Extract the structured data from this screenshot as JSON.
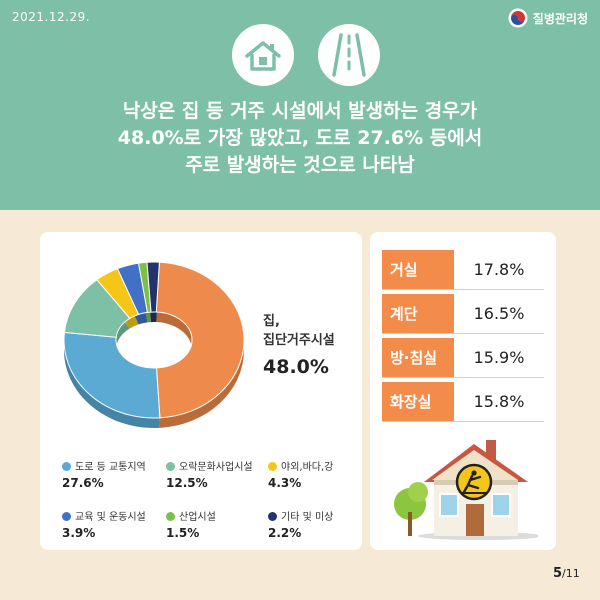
{
  "header": {
    "date": "2021.12.29.",
    "agency": "질병관리청",
    "headline_lines": [
      "낙상은 집 등 거주 시설에서 발생하는 경우가",
      "48.0%로 가장 많았고, 도로 27.6% 등에서",
      "주로 발생하는 것으로 나타남"
    ]
  },
  "chart_data": {
    "type": "pie",
    "donut": true,
    "categories": [
      "집, 집단거주시설",
      "도로 등 교통지역",
      "오락문화사업시설",
      "야외,바다,강",
      "교육 및 운동시설",
      "산업시설",
      "기타 및 미상"
    ],
    "values": [
      48.0,
      27.6,
      12.5,
      4.3,
      3.9,
      1.5,
      2.2
    ],
    "value_labels": [
      "48.0%",
      "27.6%",
      "12.5%",
      "4.3%",
      "3.9%",
      "1.5%",
      "2.2%"
    ],
    "colors": [
      "#ee8a4b",
      "#5aaad4",
      "#7cc0a5",
      "#f5c518",
      "#4170c7",
      "#7cc04a",
      "#24336b"
    ],
    "main_label_lines": [
      "집,",
      "집단거주시설"
    ],
    "main_value": "48.0%",
    "legend_placement": "bottom"
  },
  "legend": [
    {
      "label": "도로 등 교통지역",
      "value": "27.6%",
      "color": "#5aaad4"
    },
    {
      "label": "오락문화사업시설",
      "value": "12.5%",
      "color": "#7cc0a5"
    },
    {
      "label": "야외,바다,강",
      "value": "4.3%",
      "color": "#f5c518"
    },
    {
      "label": "교육 및 운동시설",
      "value": "3.9%",
      "color": "#4170c7"
    },
    {
      "label": "산업시설",
      "value": "1.5%",
      "color": "#7cc04a"
    },
    {
      "label": "기타 및 미상",
      "value": "2.2%",
      "color": "#24336b"
    }
  ],
  "home_table": [
    {
      "room": "거실",
      "pct": "17.8%"
    },
    {
      "room": "계단",
      "pct": "16.5%"
    },
    {
      "room": "방·침실",
      "pct": "15.9%"
    },
    {
      "room": "화장실",
      "pct": "15.8%"
    }
  ],
  "pagination": {
    "current": "5",
    "total": "/11"
  },
  "colors": {
    "header_bg": "#7dbfa7",
    "page_bg": "#f6ead6",
    "accent": "#f38b4a"
  }
}
